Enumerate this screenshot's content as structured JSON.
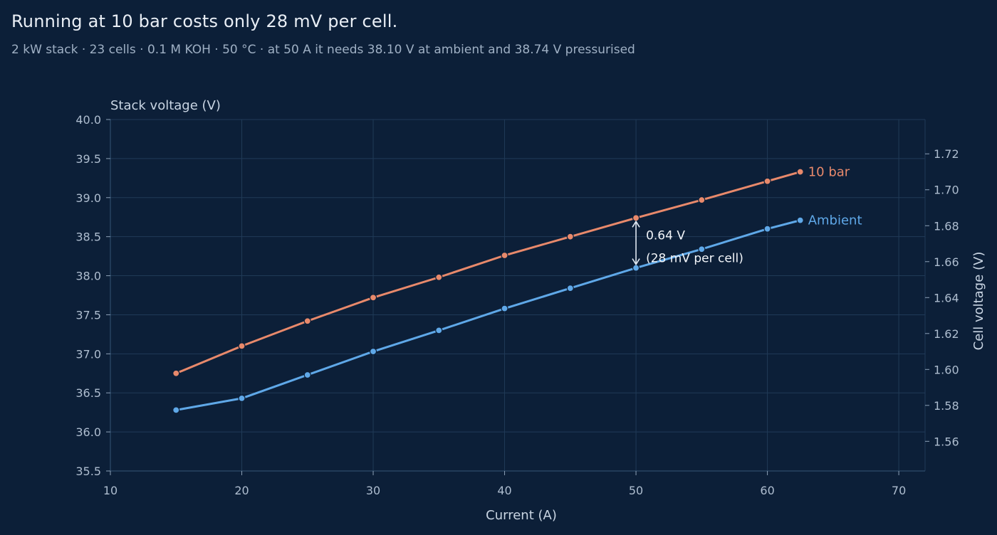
{
  "header": {
    "title": "Running at 10 bar costs only 28 mV per cell.",
    "subtitle": "2 kW stack · 23 cells · 0.1 M KOH · 50 °C · at 50 A it needs 38.10 V at ambient and 38.74 V pressurised"
  },
  "chart_data": {
    "type": "line",
    "xlabel": "Current (A)",
    "ylabel": "Stack voltage (V)",
    "y2label": "Cell voltage (V)",
    "xlim": [
      10,
      72
    ],
    "ylim": [
      35.5,
      40.0
    ],
    "y2lim": [
      1.5435,
      1.7391
    ],
    "x_ticks": [
      10,
      20,
      30,
      40,
      50,
      60,
      70
    ],
    "y_ticks": [
      35.5,
      36.0,
      36.5,
      37.0,
      37.5,
      38.0,
      38.5,
      39.0,
      39.5,
      40.0
    ],
    "y_tick_labels": [
      "35.5",
      "36.0",
      "36.5",
      "37.0",
      "37.5",
      "38.0",
      "38.5",
      "39.0",
      "39.5",
      "40.0"
    ],
    "y2_ticks": [
      1.56,
      1.58,
      1.6,
      1.62,
      1.64,
      1.66,
      1.68,
      1.7,
      1.72
    ],
    "y2_tick_labels": [
      "1.56",
      "1.58",
      "1.60",
      "1.62",
      "1.64",
      "1.66",
      "1.68",
      "1.70",
      "1.72"
    ],
    "grid": true,
    "legend": "inline labels at line ends",
    "series": [
      {
        "name": "10 bar",
        "color": "#e8896b",
        "x": [
          15,
          20,
          25,
          30,
          35,
          40,
          45,
          50,
          55,
          60,
          62.5
        ],
        "y": [
          36.75,
          37.1,
          37.42,
          37.72,
          37.98,
          38.26,
          38.5,
          38.74,
          38.97,
          39.21,
          39.33
        ]
      },
      {
        "name": "Ambient",
        "color": "#5fa8e8",
        "x": [
          15,
          20,
          25,
          30,
          35,
          40,
          45,
          50,
          55,
          60,
          62.5
        ],
        "y": [
          36.28,
          36.43,
          36.73,
          37.03,
          37.3,
          37.58,
          37.84,
          38.1,
          38.34,
          38.6,
          38.71
        ]
      }
    ],
    "annotation": {
      "x": 50,
      "y_from": 38.1,
      "y_to": 38.74,
      "line1": "0.64 V",
      "line2": "(28 mV per cell)",
      "color": "#dfe8f2"
    }
  }
}
